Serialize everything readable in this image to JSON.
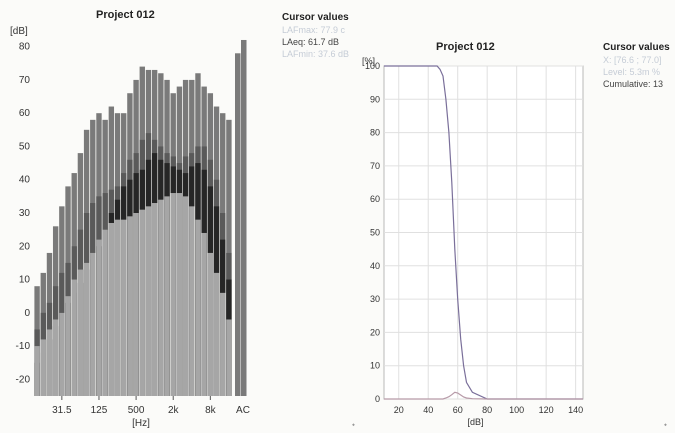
{
  "left_panel": {
    "title": "Project 012",
    "cursor_title": "Cursor values",
    "cursor_lines": [
      "LAFmax: 77.9 c",
      "LAeq: 61.7 dB",
      "LAFmin: 37.6 dB"
    ]
  },
  "right_panel": {
    "title": "Project 012",
    "cursor_title": "Cursor values",
    "cursor_lines": [
      "X: [76.6 ; 77.0]",
      "Level: 5.3m %",
      "Cumulative: 13"
    ]
  },
  "colors": {
    "light_gray": "#a6a6a6",
    "dark": "#262626",
    "mid_gray": "#5a5a5a",
    "top_gray": "#7a7a7a"
  },
  "chart_data": [
    {
      "type": "bar",
      "title": "Project 012",
      "ylabel": "[dB]",
      "xlabel": "[Hz]",
      "ylim": [
        -25,
        85
      ],
      "yticks": [
        -20,
        -10,
        0,
        10,
        20,
        30,
        40,
        50,
        60,
        70,
        80
      ],
      "xtick_labels": [
        "31.5",
        "125",
        "500",
        "2k",
        "8k",
        "AC"
      ],
      "xtick_band_index": [
        4,
        10,
        16,
        22,
        28,
        33
      ],
      "band_count": 32,
      "series": [
        {
          "values": [
            -10,
            -8,
            -5,
            -2,
            0,
            5,
            10,
            13,
            15,
            18,
            22,
            25,
            27,
            28,
            28,
            29,
            30,
            31,
            32,
            33,
            34,
            35,
            36,
            36,
            35,
            32,
            28,
            24,
            18,
            12,
            6,
            -2
          ]
        },
        {
          "values": [
            -15,
            -12,
            -8,
            -4,
            0,
            3,
            6,
            9,
            13,
            16,
            20,
            25,
            30,
            34,
            38,
            40,
            42,
            43,
            46,
            48,
            46,
            45,
            44,
            43,
            42,
            44,
            45,
            43,
            38,
            32,
            22,
            10
          ]
        },
        {
          "values": [
            -5,
            0,
            3,
            8,
            12,
            15,
            20,
            25,
            30,
            33,
            35,
            36,
            37,
            38,
            42,
            46,
            48,
            52,
            54,
            52,
            50,
            48,
            47,
            45,
            47,
            48,
            50,
            50,
            46,
            40,
            30,
            18
          ]
        },
        {
          "values": [
            8,
            12,
            18,
            26,
            32,
            38,
            42,
            48,
            55,
            58,
            60,
            58,
            62,
            60,
            60,
            66,
            70,
            74,
            73,
            73,
            72,
            70,
            66,
            68,
            70,
            70,
            72,
            68,
            66,
            62,
            60,
            58
          ]
        }
      ],
      "ac_bars": [
        {
          "values": [
            78,
            74,
            66,
            46
          ]
        },
        {
          "values": [
            82,
            78,
            58,
            44
          ]
        }
      ]
    },
    {
      "type": "line",
      "title": "Project 012",
      "ylabel": "[%]",
      "xlabel": "[dB]",
      "xlim": [
        10,
        145
      ],
      "ylim": [
        0,
        100
      ],
      "xticks": [
        20,
        40,
        60,
        80,
        100,
        120,
        140
      ],
      "yticks": [
        0,
        10,
        20,
        30,
        40,
        50,
        60,
        70,
        80,
        90,
        100
      ],
      "series": [
        {
          "name": "Cumulative",
          "x": [
            10,
            40,
            46,
            48,
            50,
            52,
            54,
            56,
            58,
            60,
            62,
            64,
            66,
            70,
            80,
            145
          ],
          "y": [
            100,
            100,
            100,
            99,
            97,
            90,
            80,
            65,
            45,
            30,
            18,
            10,
            5,
            2,
            0,
            0
          ]
        },
        {
          "name": "Level",
          "x": [
            10,
            50,
            52,
            54,
            56,
            58,
            60,
            62,
            64,
            66,
            70,
            80,
            145
          ],
          "y": [
            0,
            0,
            0.3,
            0.7,
            1.3,
            2.0,
            1.8,
            1.2,
            0.6,
            0.3,
            0.1,
            0,
            0
          ]
        }
      ]
    }
  ]
}
